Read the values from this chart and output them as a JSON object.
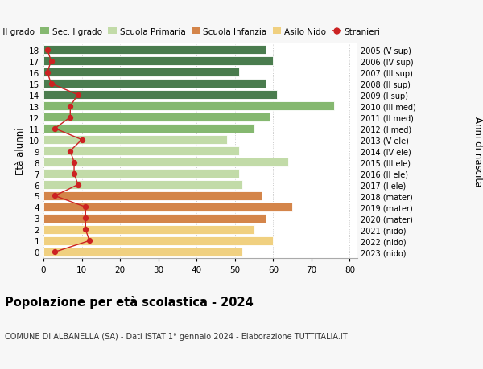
{
  "ages": [
    18,
    17,
    16,
    15,
    14,
    13,
    12,
    11,
    10,
    9,
    8,
    7,
    6,
    5,
    4,
    3,
    2,
    1,
    0
  ],
  "bar_values": [
    58,
    60,
    51,
    58,
    61,
    76,
    59,
    55,
    48,
    51,
    64,
    51,
    52,
    57,
    65,
    58,
    55,
    60,
    52
  ],
  "stranieri_values": [
    1,
    2,
    1,
    2,
    9,
    7,
    7,
    3,
    10,
    7,
    8,
    8,
    9,
    3,
    11,
    11,
    11,
    12,
    3
  ],
  "right_labels": [
    "2005 (V sup)",
    "2006 (IV sup)",
    "2007 (III sup)",
    "2008 (II sup)",
    "2009 (I sup)",
    "2010 (III med)",
    "2011 (II med)",
    "2012 (I med)",
    "2013 (V ele)",
    "2014 (IV ele)",
    "2015 (III ele)",
    "2016 (II ele)",
    "2017 (I ele)",
    "2018 (mater)",
    "2019 (mater)",
    "2020 (mater)",
    "2021 (nido)",
    "2022 (nido)",
    "2023 (nido)"
  ],
  "bar_colors": [
    "#4a7c4e",
    "#4a7c4e",
    "#4a7c4e",
    "#4a7c4e",
    "#4a7c4e",
    "#85b870",
    "#85b870",
    "#85b870",
    "#c2dba8",
    "#c2dba8",
    "#c2dba8",
    "#c2dba8",
    "#c2dba8",
    "#d4854a",
    "#d4854a",
    "#d4854a",
    "#f0d080",
    "#f0d080",
    "#f0d080"
  ],
  "legend_labels": [
    "Sec. II grado",
    "Sec. I grado",
    "Scuola Primaria",
    "Scuola Infanzia",
    "Asilo Nido",
    "Stranieri"
  ],
  "legend_colors": [
    "#4a7c4e",
    "#85b870",
    "#c2dba8",
    "#d4854a",
    "#f0d080",
    "#cc2222"
  ],
  "xlabel": "Età alunni",
  "ylabel_right": "Anni di nascita",
  "title": "Popolazione per età scolastica - 2024",
  "subtitle": "COMUNE DI ALBANELLA (SA) - Dati ISTAT 1° gennaio 2024 - Elaborazione TUTTITALIA.IT",
  "xlim": [
    0,
    82
  ],
  "xticks": [
    0,
    10,
    20,
    30,
    40,
    50,
    60,
    70,
    80
  ],
  "stranieri_color": "#cc2222",
  "bg_color": "#f7f7f7",
  "plot_bg": "#ffffff"
}
